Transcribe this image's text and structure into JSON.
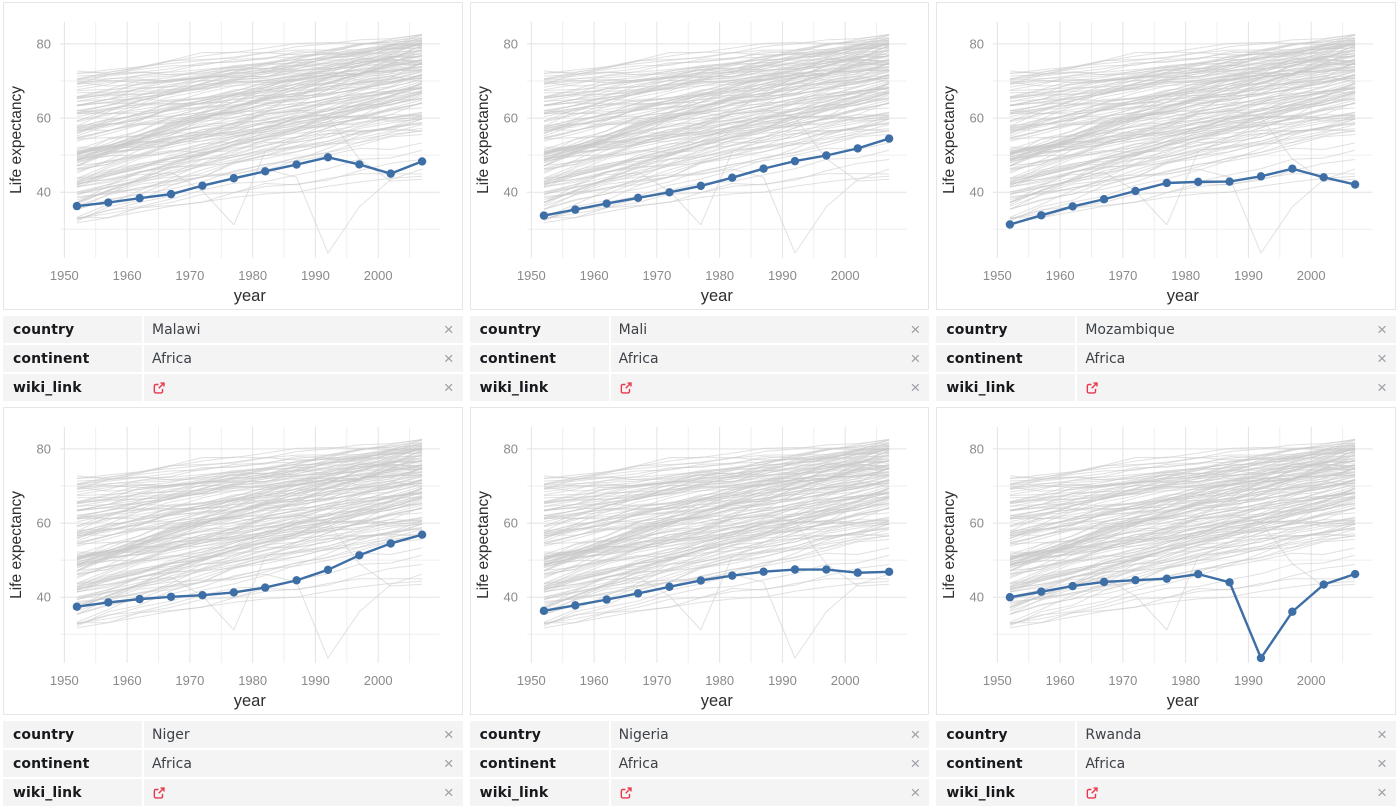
{
  "colors": {
    "highlight_line": "#3d6ea5",
    "background_line": "#c9c9c9",
    "grid_major": "#e3e3e3",
    "grid_minor": "#efefef",
    "tick_label": "#8a8a8a",
    "axis_title": "#2e2e2e",
    "panel_border": "#e6e6e6",
    "table_row_bg": "#f4f4f5",
    "table_key": "#17191c",
    "table_value": "#3c4247",
    "close_icon": "#9aa0a6",
    "link_icon": "#e8364a"
  },
  "icons": {
    "close": "×",
    "wiki_link": "external-link-icon"
  },
  "chart_data": {
    "type": "line",
    "title": "",
    "xlabel": "year",
    "ylabel": "Life expectancy",
    "x": [
      1952,
      1957,
      1962,
      1967,
      1972,
      1977,
      1982,
      1987,
      1992,
      1997,
      2002,
      2007
    ],
    "x_ticks": [
      1950,
      1960,
      1970,
      1980,
      1990,
      2000
    ],
    "x_minor_ticks": [
      1955,
      1965,
      1975,
      1985,
      1995,
      2005
    ],
    "y_ticks": [
      40,
      60,
      80
    ],
    "y_minor_ticks": [
      30,
      50,
      70
    ],
    "xlim": [
      1949.3,
      2009.8
    ],
    "ylim": [
      22.3,
      85.9
    ],
    "grid": true,
    "legend": "none",
    "series": [
      {
        "name": "Malawi",
        "values": [
          36.256,
          37.207,
          38.41,
          39.487,
          41.766,
          43.767,
          45.642,
          47.457,
          49.42,
          47.495,
          45.009,
          48.303
        ]
      },
      {
        "name": "Mali",
        "values": [
          33.685,
          35.307,
          36.936,
          38.487,
          39.977,
          41.714,
          43.916,
          46.364,
          48.388,
          49.903,
          51.818,
          54.467
        ]
      },
      {
        "name": "Mozambique",
        "values": [
          31.286,
          33.779,
          36.161,
          38.113,
          40.328,
          42.495,
          42.795,
          42.861,
          44.284,
          46.344,
          44.026,
          42.082
        ]
      },
      {
        "name": "Niger",
        "values": [
          37.444,
          38.598,
          39.487,
          40.118,
          40.546,
          41.291,
          42.598,
          44.555,
          47.391,
          51.313,
          54.496,
          56.867
        ]
      },
      {
        "name": "Nigeria",
        "values": [
          36.324,
          37.802,
          39.36,
          41.04,
          42.821,
          44.514,
          45.826,
          46.886,
          47.472,
          47.464,
          46.608,
          46.859
        ]
      },
      {
        "name": "Rwanda",
        "values": [
          40.0,
          41.5,
          43.0,
          44.1,
          44.6,
          45.0,
          46.218,
          44.02,
          23.599,
          36.087,
          43.413,
          46.242
        ]
      }
    ],
    "background": {
      "description": "all-country gapminder life-expectancy trajectories drawn as light gray context lines in every panel",
      "approx_count": 138,
      "notable_series": [
        {
          "name": "dip-1977",
          "values": [
            39.417,
            41.366,
            43.415,
            45.415,
            40.317,
            31.22,
            50.957,
            53.914,
            55.803,
            56.534,
            56.752,
            59.723
          ]
        },
        {
          "name": "dip-1992",
          "values": [
            40.0,
            41.5,
            43.0,
            44.1,
            44.6,
            45.0,
            46.218,
            44.02,
            23.599,
            36.087,
            43.413,
            46.242
          ]
        },
        {
          "name": "dip-2002",
          "values": [
            48.5,
            52.6,
            55.6,
            58.1,
            60.3,
            61.4,
            60.4,
            62.4,
            60.2,
            49.0,
            43.0,
            43.5
          ]
        }
      ]
    }
  },
  "table_labels": {
    "country": "country",
    "continent": "continent",
    "wiki_link": "wiki_link"
  },
  "cards": [
    {
      "country": "Malawi",
      "continent": "Africa"
    },
    {
      "country": "Mali",
      "continent": "Africa"
    },
    {
      "country": "Mozambique",
      "continent": "Africa"
    },
    {
      "country": "Niger",
      "continent": "Africa"
    },
    {
      "country": "Nigeria",
      "continent": "Africa"
    },
    {
      "country": "Rwanda",
      "continent": "Africa"
    }
  ]
}
